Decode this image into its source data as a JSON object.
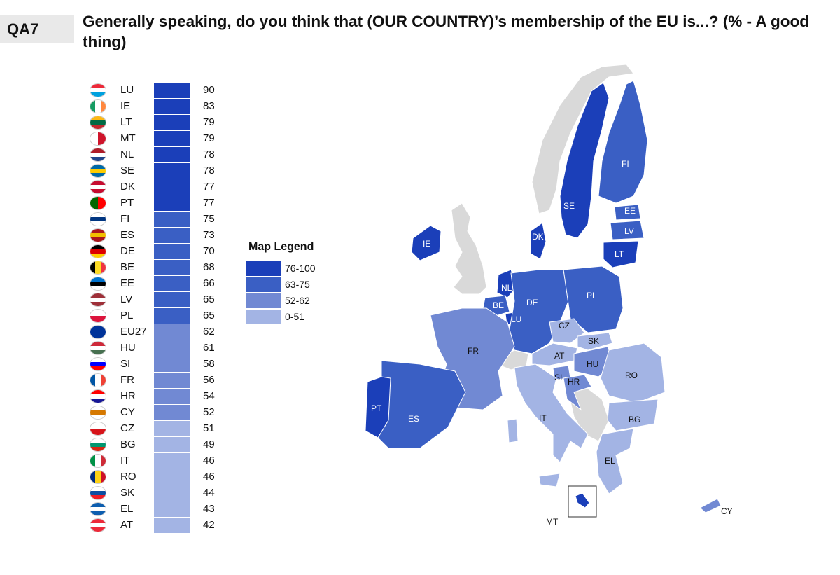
{
  "header": {
    "question_code": "QA7",
    "title": "Generally speaking, do you think that (OUR COUNTRY)’s membership of the EU is...? (% - A good thing)"
  },
  "colors": {
    "band_76_100": "#1b3fb9",
    "band_63_75": "#3a5fc4",
    "band_52_62": "#7189d3",
    "band_0_51": "#a3b4e4",
    "non_eu": "#d9d9d9"
  },
  "legend": {
    "title": "Map Legend",
    "items": [
      {
        "label": "76-100",
        "color": "#1b3fb9"
      },
      {
        "label": "63-75",
        "color": "#3a5fc4"
      },
      {
        "label": "52-62",
        "color": "#7189d3"
      },
      {
        "label": "0-51",
        "color": "#a3b4e4"
      }
    ]
  },
  "ranking": [
    {
      "code": "LU",
      "value": 90
    },
    {
      "code": "IE",
      "value": 83
    },
    {
      "code": "LT",
      "value": 79
    },
    {
      "code": "MT",
      "value": 79
    },
    {
      "code": "NL",
      "value": 78
    },
    {
      "code": "SE",
      "value": 78
    },
    {
      "code": "DK",
      "value": 77
    },
    {
      "code": "PT",
      "value": 77
    },
    {
      "code": "FI",
      "value": 75
    },
    {
      "code": "ES",
      "value": 73
    },
    {
      "code": "DE",
      "value": 70
    },
    {
      "code": "BE",
      "value": 68
    },
    {
      "code": "EE",
      "value": 66
    },
    {
      "code": "LV",
      "value": 65
    },
    {
      "code": "PL",
      "value": 65
    },
    {
      "code": "EU27",
      "value": 62
    },
    {
      "code": "HU",
      "value": 61
    },
    {
      "code": "SI",
      "value": 58
    },
    {
      "code": "FR",
      "value": 56
    },
    {
      "code": "HR",
      "value": 54
    },
    {
      "code": "CY",
      "value": 52
    },
    {
      "code": "CZ",
      "value": 51
    },
    {
      "code": "BG",
      "value": 49
    },
    {
      "code": "IT",
      "value": 46
    },
    {
      "code": "RO",
      "value": 46
    },
    {
      "code": "SK",
      "value": 44
    },
    {
      "code": "EL",
      "value": 43
    },
    {
      "code": "AT",
      "value": 42
    }
  ],
  "map_labels": [
    "FI",
    "SE",
    "EE",
    "LV",
    "LT",
    "DK",
    "IE",
    "NL",
    "BE",
    "LU",
    "DE",
    "PL",
    "CZ",
    "SK",
    "AT",
    "HU",
    "SI",
    "HR",
    "RO",
    "FR",
    "PT",
    "ES",
    "IT",
    "BG",
    "EL",
    "MT",
    "CY"
  ]
}
